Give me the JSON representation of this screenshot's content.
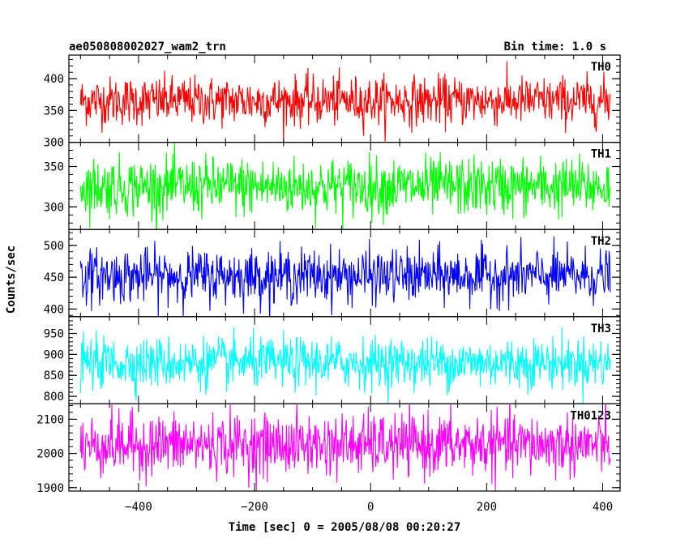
{
  "chart_data": {
    "type": "line",
    "title_left": "ae050808002027_wam2_trn",
    "title_right": "Bin time: 1.0 s",
    "xlabel": "Time [sec] 0 = 2005/08/08 00:20:27",
    "ylabel": "Counts/sec",
    "xlim": [
      -520,
      430
    ],
    "x_range": [
      -500,
      413
    ],
    "x_ticks": [
      -400,
      -200,
      0,
      200,
      400
    ],
    "x_tick_labels": [
      "−400",
      "−200",
      "0",
      "200",
      "400"
    ],
    "panels": [
      {
        "name": "TH0",
        "color": "#ff0000",
        "ylim": [
          300,
          437
        ],
        "yticks": [
          300,
          350,
          400
        ],
        "mean": 365,
        "noise": 19,
        "values": []
      },
      {
        "name": "TH1",
        "color": "#00ff00",
        "ylim": [
          272,
          380
        ],
        "yticks": [
          300,
          350
        ],
        "mean": 325,
        "noise": 18,
        "values": []
      },
      {
        "name": "TH2",
        "color": "#0000ff",
        "ylim": [
          388,
          525
        ],
        "yticks": [
          400,
          450,
          500
        ],
        "mean": 452,
        "noise": 21,
        "values": []
      },
      {
        "name": "TH3",
        "color": "#00ffff",
        "ylim": [
          782,
          990
        ],
        "yticks": [
          800,
          850,
          900,
          950
        ],
        "mean": 880,
        "noise": 30,
        "values": []
      },
      {
        "name": "TH0123",
        "color": "#ff00ff",
        "ylim": [
          1890,
          2145
        ],
        "yticks": [
          1900,
          2000,
          2100
        ],
        "mean": 2025,
        "noise": 45,
        "values": []
      }
    ]
  }
}
